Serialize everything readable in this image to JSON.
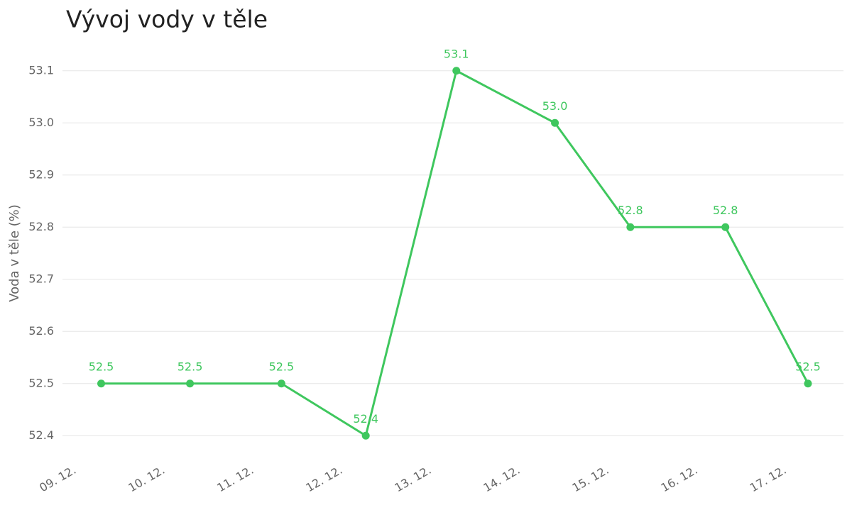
{
  "chart_data": {
    "type": "line",
    "title": "Vývoj vody v těle",
    "y_label": "Voda v těle (%)",
    "x": [
      9.26,
      10.26,
      11.29,
      12.24,
      13.26,
      14.37,
      15.22,
      16.29,
      17.22
    ],
    "series": [
      {
        "name": "Voda v těle",
        "color": "#3fc75e",
        "values": [
          52.5,
          52.5,
          52.5,
          52.4,
          53.1,
          53.0,
          52.8,
          52.8,
          52.5
        ],
        "value_labels": [
          "52.5",
          "52.5",
          "52.5",
          "52.4",
          "53.1",
          "53.0",
          "52.8",
          "52.8",
          "52.5"
        ]
      }
    ],
    "xlim": [
      8.92,
      17.62
    ],
    "xticks": [
      {
        "value": 9,
        "label": "09. 12."
      },
      {
        "value": 10,
        "label": "10. 12."
      },
      {
        "value": 11,
        "label": "11. 12."
      },
      {
        "value": 12,
        "label": "12. 12."
      },
      {
        "value": 13,
        "label": "13. 12."
      },
      {
        "value": 14,
        "label": "14. 12."
      },
      {
        "value": 15,
        "label": "15. 12."
      },
      {
        "value": 16,
        "label": "16. 12."
      },
      {
        "value": 17,
        "label": "17. 12."
      }
    ],
    "ylim": [
      52.35,
      53.15
    ],
    "yticks": [
      52.4,
      52.5,
      52.6,
      52.7,
      52.8,
      52.9,
      {
        "value": 53,
        "label": "53.0"
      },
      53.1
    ],
    "grid": true
  }
}
